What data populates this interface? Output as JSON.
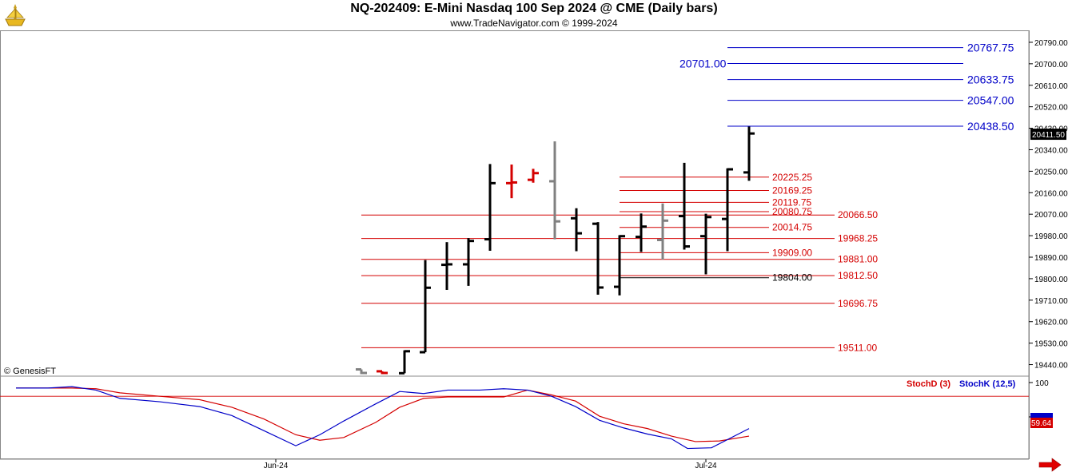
{
  "header": {
    "title": "NQ-202409:  E-Mini Nasdaq 100 Sep 2024 @ CME  (Daily bars)",
    "subtitle": "www.TradeNavigator.com © 1999-2024"
  },
  "watermark": "© GenesisFT",
  "colors": {
    "up_levels": "#0000c8",
    "down_levels": "#d40000",
    "bars": "#000000",
    "grey_bars": "#808080",
    "stoch_d": "#d40000",
    "stoch_k": "#0000c8",
    "arrow": "#e00000"
  },
  "chart_data": [
    {
      "type": "bar",
      "subtype": "ohlc",
      "title": "NQ-202409:  E-Mini Nasdaq 100 Sep 2024 @ CME  (Daily bars)",
      "ylim": [
        19395,
        20840
      ],
      "y_ticks": [
        20790,
        20700,
        20610,
        20520,
        20430,
        20340,
        20250,
        20160,
        20070,
        19980,
        19890,
        19800,
        19710,
        19620,
        19530,
        19440
      ],
      "y_tick_labels": [
        "20790.00",
        "20700.00",
        "20610.00",
        "20520.00",
        "20430.00",
        "20340.00",
        "20250.00",
        "20160.00",
        "20070.00",
        "19980.00",
        "19890.00",
        "19800.00",
        "19710.00",
        "19620.00",
        "19530.00",
        "19440.00"
      ],
      "last_price": "20411.50",
      "x_labels": [
        "Jun-24",
        "Jul-24"
      ],
      "bars": [
        {
          "x": 452,
          "o": 19420,
          "h": 19420,
          "l": 19400,
          "c": 19405,
          "color": "grey"
        },
        {
          "x": 478,
          "o": 19412,
          "h": 19412,
          "l": 19400,
          "c": 19405,
          "color": "red"
        },
        {
          "x": 506,
          "o": 19404,
          "h": 19500,
          "l": 19404,
          "c": 19496,
          "color": "black"
        },
        {
          "x": 532,
          "o": 19492,
          "h": 19878,
          "l": 19492,
          "c": 19762,
          "color": "black"
        },
        {
          "x": 559,
          "o": 19858,
          "h": 19953,
          "l": 19753,
          "c": 19860,
          "color": "black"
        },
        {
          "x": 586,
          "o": 19860,
          "h": 19970,
          "l": 19770,
          "c": 19958,
          "color": "black"
        },
        {
          "x": 613,
          "o": 19965,
          "h": 20280,
          "l": 19917,
          "c": 20200,
          "color": "black"
        },
        {
          "x": 640,
          "o": 20200,
          "h": 20278,
          "l": 20137,
          "c": 20203,
          "color": "red"
        },
        {
          "x": 667,
          "o": 20214,
          "h": 20260,
          "l": 20202,
          "c": 20242,
          "color": "red"
        },
        {
          "x": 694,
          "o": 20208,
          "h": 20375,
          "l": 19965,
          "c": 20040,
          "color": "grey"
        },
        {
          "x": 721,
          "o": 20053,
          "h": 20095,
          "l": 19915,
          "c": 19990,
          "color": "black"
        },
        {
          "x": 748,
          "o": 20030,
          "h": 20037,
          "l": 19733,
          "c": 19763,
          "color": "black"
        },
        {
          "x": 775,
          "o": 19766,
          "h": 19982,
          "l": 19730,
          "c": 19978,
          "color": "black"
        },
        {
          "x": 802,
          "o": 19975,
          "h": 20073,
          "l": 19912,
          "c": 20018,
          "color": "black"
        },
        {
          "x": 829,
          "o": 19962,
          "h": 20115,
          "l": 19880,
          "c": 20043,
          "color": "grey"
        },
        {
          "x": 856,
          "o": 20062,
          "h": 20285,
          "l": 19922,
          "c": 19935,
          "color": "black"
        },
        {
          "x": 883,
          "o": 19978,
          "h": 20072,
          "l": 19818,
          "c": 20058,
          "color": "black"
        },
        {
          "x": 910,
          "o": 20050,
          "h": 20262,
          "l": 19915,
          "c": 20258,
          "color": "black"
        },
        {
          "x": 937,
          "o": 20245,
          "h": 20437,
          "l": 20210,
          "c": 20408,
          "color": "black"
        }
      ],
      "levels_up": [
        {
          "value": 20767.75,
          "label": "20767.75",
          "x1": 910,
          "x2": 1205,
          "label_x": 1210
        },
        {
          "value": 20701.0,
          "label": "20701.00",
          "x1": 910,
          "x2": 1205,
          "label_x": 850
        },
        {
          "value": 20633.75,
          "label": "20633.75",
          "x1": 910,
          "x2": 1205,
          "label_x": 1210
        },
        {
          "value": 20547.0,
          "label": "20547.00",
          "x1": 910,
          "x2": 1205,
          "label_x": 1210
        },
        {
          "value": 20438.5,
          "label": "20438.50",
          "x1": 910,
          "x2": 1205,
          "label_x": 1210
        }
      ],
      "levels_down": [
        {
          "value": 20225.25,
          "label": "20225.25",
          "x1": 775,
          "x2": 962,
          "label_x": 966,
          "color": "red"
        },
        {
          "value": 20169.25,
          "label": "20169.25",
          "x1": 775,
          "x2": 962,
          "label_x": 966,
          "color": "red"
        },
        {
          "value": 20119.75,
          "label": "20119.75",
          "x1": 775,
          "x2": 962,
          "label_x": 966,
          "color": "red"
        },
        {
          "value": 20080.75,
          "label": "20080.75",
          "x1": 775,
          "x2": 962,
          "label_x": 966,
          "color": "red"
        },
        {
          "value": 20066.5,
          "label": "20066.50",
          "x1": 452,
          "x2": 1044,
          "label_x": 1048,
          "color": "red"
        },
        {
          "value": 20014.75,
          "label": "20014.75",
          "x1": 775,
          "x2": 962,
          "label_x": 966,
          "color": "red"
        },
        {
          "value": 19968.25,
          "label": "19968.25",
          "x1": 452,
          "x2": 1044,
          "label_x": 1048,
          "color": "red"
        },
        {
          "value": 19909.0,
          "label": "19909.00",
          "x1": 775,
          "x2": 962,
          "label_x": 966,
          "color": "red"
        },
        {
          "value": 19881.0,
          "label": "19881.00",
          "x1": 452,
          "x2": 1044,
          "label_x": 1048,
          "color": "red"
        },
        {
          "value": 19812.5,
          "label": "19812.50",
          "x1": 452,
          "x2": 1044,
          "label_x": 1048,
          "color": "red"
        },
        {
          "value": 19804.0,
          "label": "19804.00",
          "x1": 775,
          "x2": 962,
          "label_x": 966,
          "color": "black"
        },
        {
          "value": 19696.75,
          "label": "19696.75",
          "x1": 452,
          "x2": 1044,
          "label_x": 1048,
          "color": "red"
        },
        {
          "value": 19511.0,
          "label": "19511.00",
          "x1": 452,
          "x2": 1044,
          "label_x": 1048,
          "color": "red"
        }
      ]
    },
    {
      "type": "line",
      "ylim": [
        0,
        100
      ],
      "y_ticks": [
        100,
        50
      ],
      "ref_line": 80,
      "series": [
        {
          "name": "StochD (3)",
          "color": "red",
          "x": [
            20,
            60,
            90,
            120,
            150,
            200,
            250,
            290,
            330,
            370,
            400,
            430,
            470,
            500,
            530,
            560,
            600,
            630,
            660,
            690,
            720,
            750,
            780,
            810,
            840,
            870,
            900,
            937
          ],
          "y": [
            92,
            92,
            92,
            91,
            85,
            80,
            75,
            64,
            47,
            24,
            16,
            20,
            42,
            64,
            77,
            79,
            79,
            79,
            89,
            82,
            73,
            51,
            40,
            33,
            22,
            14,
            15,
            22
          ]
        },
        {
          "name": "StochK (12,5)",
          "color": "blue",
          "x": [
            20,
            60,
            90,
            120,
            150,
            200,
            250,
            290,
            330,
            370,
            400,
            430,
            470,
            500,
            530,
            560,
            600,
            630,
            660,
            690,
            720,
            750,
            780,
            810,
            840,
            860,
            890,
            937
          ],
          "y": [
            92,
            92,
            94,
            89,
            77,
            72,
            65,
            52,
            30,
            8,
            24,
            44,
            69,
            87,
            84,
            89,
            89,
            91,
            89,
            80,
            65,
            45,
            34,
            25,
            18,
            4,
            5,
            33
          ]
        }
      ],
      "last_values": [
        "59.64"
      ]
    }
  ]
}
